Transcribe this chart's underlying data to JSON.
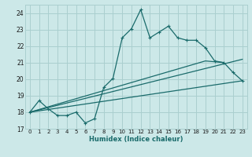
{
  "background_color": "#cce8e8",
  "grid_color": "#aacfcf",
  "line_color": "#1a6b6b",
  "x_label": "Humidex (Indice chaleur)",
  "xlim": [
    -0.5,
    23.5
  ],
  "ylim": [
    17,
    24.5
  ],
  "yticks": [
    17,
    18,
    19,
    20,
    21,
    22,
    23,
    24
  ],
  "xticks": [
    0,
    1,
    2,
    3,
    4,
    5,
    6,
    7,
    8,
    9,
    10,
    11,
    12,
    13,
    14,
    15,
    16,
    17,
    18,
    19,
    20,
    21,
    22,
    23
  ],
  "line1_x": [
    0,
    1,
    2,
    3,
    4,
    5,
    6,
    7,
    8,
    9,
    10,
    11,
    12,
    13,
    14,
    15,
    16,
    17,
    18,
    19,
    20,
    21,
    22,
    23
  ],
  "line1_y": [
    18.0,
    18.7,
    18.2,
    17.8,
    17.8,
    18.0,
    17.35,
    17.6,
    19.5,
    20.05,
    22.5,
    23.05,
    24.2,
    22.5,
    22.85,
    23.2,
    22.5,
    22.35,
    22.35,
    21.9,
    21.1,
    21.0,
    20.4,
    19.9
  ],
  "line2_x": [
    0,
    23
  ],
  "line2_y": [
    18.0,
    19.9
  ],
  "line3_x": [
    0,
    23
  ],
  "line3_y": [
    18.0,
    21.2
  ],
  "line4_x": [
    0,
    19,
    21
  ],
  "line4_y": [
    18.0,
    21.1,
    21.0
  ]
}
